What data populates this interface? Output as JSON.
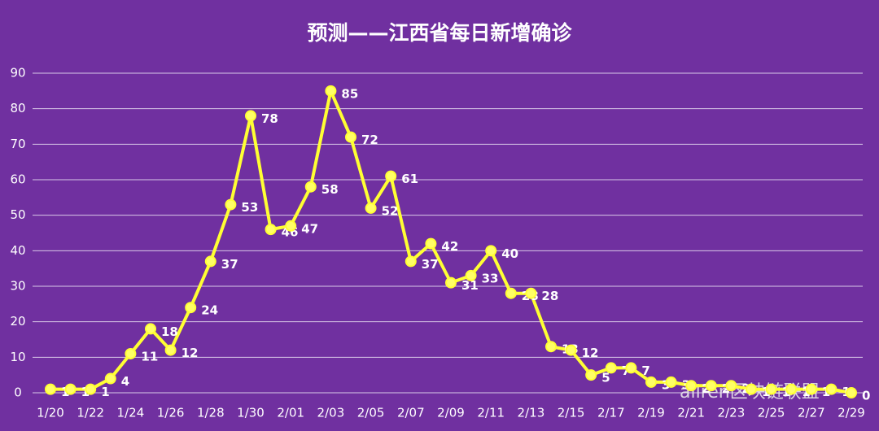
{
  "chart_data": {
    "type": "line",
    "title": "预测——江西省每日新增确诊",
    "categories": [
      "1/20",
      null,
      "1/22",
      null,
      "1/24",
      null,
      "1/26",
      null,
      "1/28",
      null,
      "1/30",
      null,
      "2/01",
      null,
      "2/03",
      null,
      "2/05",
      null,
      "2/07",
      null,
      "2/09",
      null,
      "2/11",
      null,
      "2/13",
      null,
      "2/15",
      null,
      "2/17",
      null,
      "2/19",
      null,
      "2/21",
      null,
      "2/23",
      null,
      "2/25",
      null,
      "2/27",
      null,
      "2/29"
    ],
    "values": [
      1,
      1,
      1,
      4,
      11,
      18,
      12,
      24,
      37,
      53,
      78,
      46,
      47,
      58,
      85,
      72,
      52,
      61,
      37,
      42,
      31,
      33,
      40,
      28,
      28,
      13,
      12,
      5,
      7,
      7,
      3,
      3,
      2,
      2,
      2,
      1,
      1,
      1,
      1,
      1,
      0
    ],
    "color": "#ffff33",
    "marker_color": "#ffff66",
    "ylim": [
      0,
      90
    ],
    "yticks": [
      0,
      10,
      20,
      30,
      40,
      50,
      60,
      70,
      80,
      90
    ],
    "grid": true,
    "watermark": "allren区块链联盟"
  }
}
